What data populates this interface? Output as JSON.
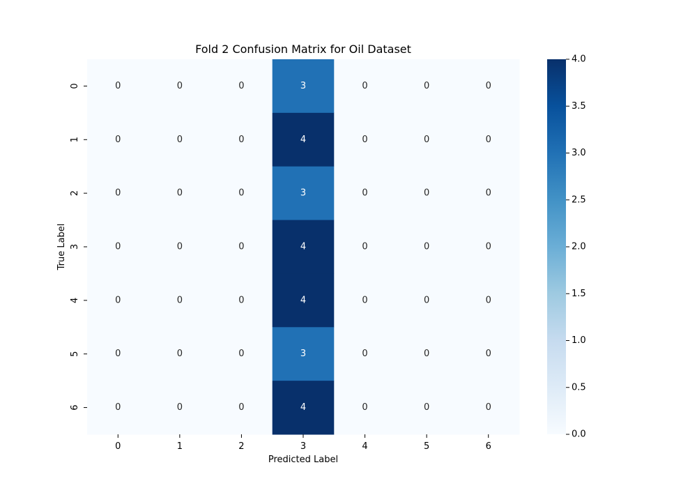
{
  "chart_data": {
    "type": "heatmap",
    "title": "Fold 2 Confusion Matrix for Oil Dataset",
    "xlabel": "Predicted Label",
    "ylabel": "True Label",
    "x_categories": [
      "0",
      "1",
      "2",
      "3",
      "4",
      "5",
      "6"
    ],
    "y_categories": [
      "0",
      "1",
      "2",
      "3",
      "4",
      "5",
      "6"
    ],
    "matrix": [
      [
        0,
        0,
        0,
        3,
        0,
        0,
        0
      ],
      [
        0,
        0,
        0,
        4,
        0,
        0,
        0
      ],
      [
        0,
        0,
        0,
        3,
        0,
        0,
        0
      ],
      [
        0,
        0,
        0,
        4,
        0,
        0,
        0
      ],
      [
        0,
        0,
        0,
        4,
        0,
        0,
        0
      ],
      [
        0,
        0,
        0,
        3,
        0,
        0,
        0
      ],
      [
        0,
        0,
        0,
        4,
        0,
        0,
        0
      ]
    ],
    "colormap": "Blues",
    "colorbar": {
      "range": [
        0.0,
        4.0
      ],
      "ticks": [
        "0.0",
        "0.5",
        "1.0",
        "1.5",
        "2.0",
        "2.5",
        "3.0",
        "3.5",
        "4.0"
      ]
    },
    "annotations": true
  }
}
